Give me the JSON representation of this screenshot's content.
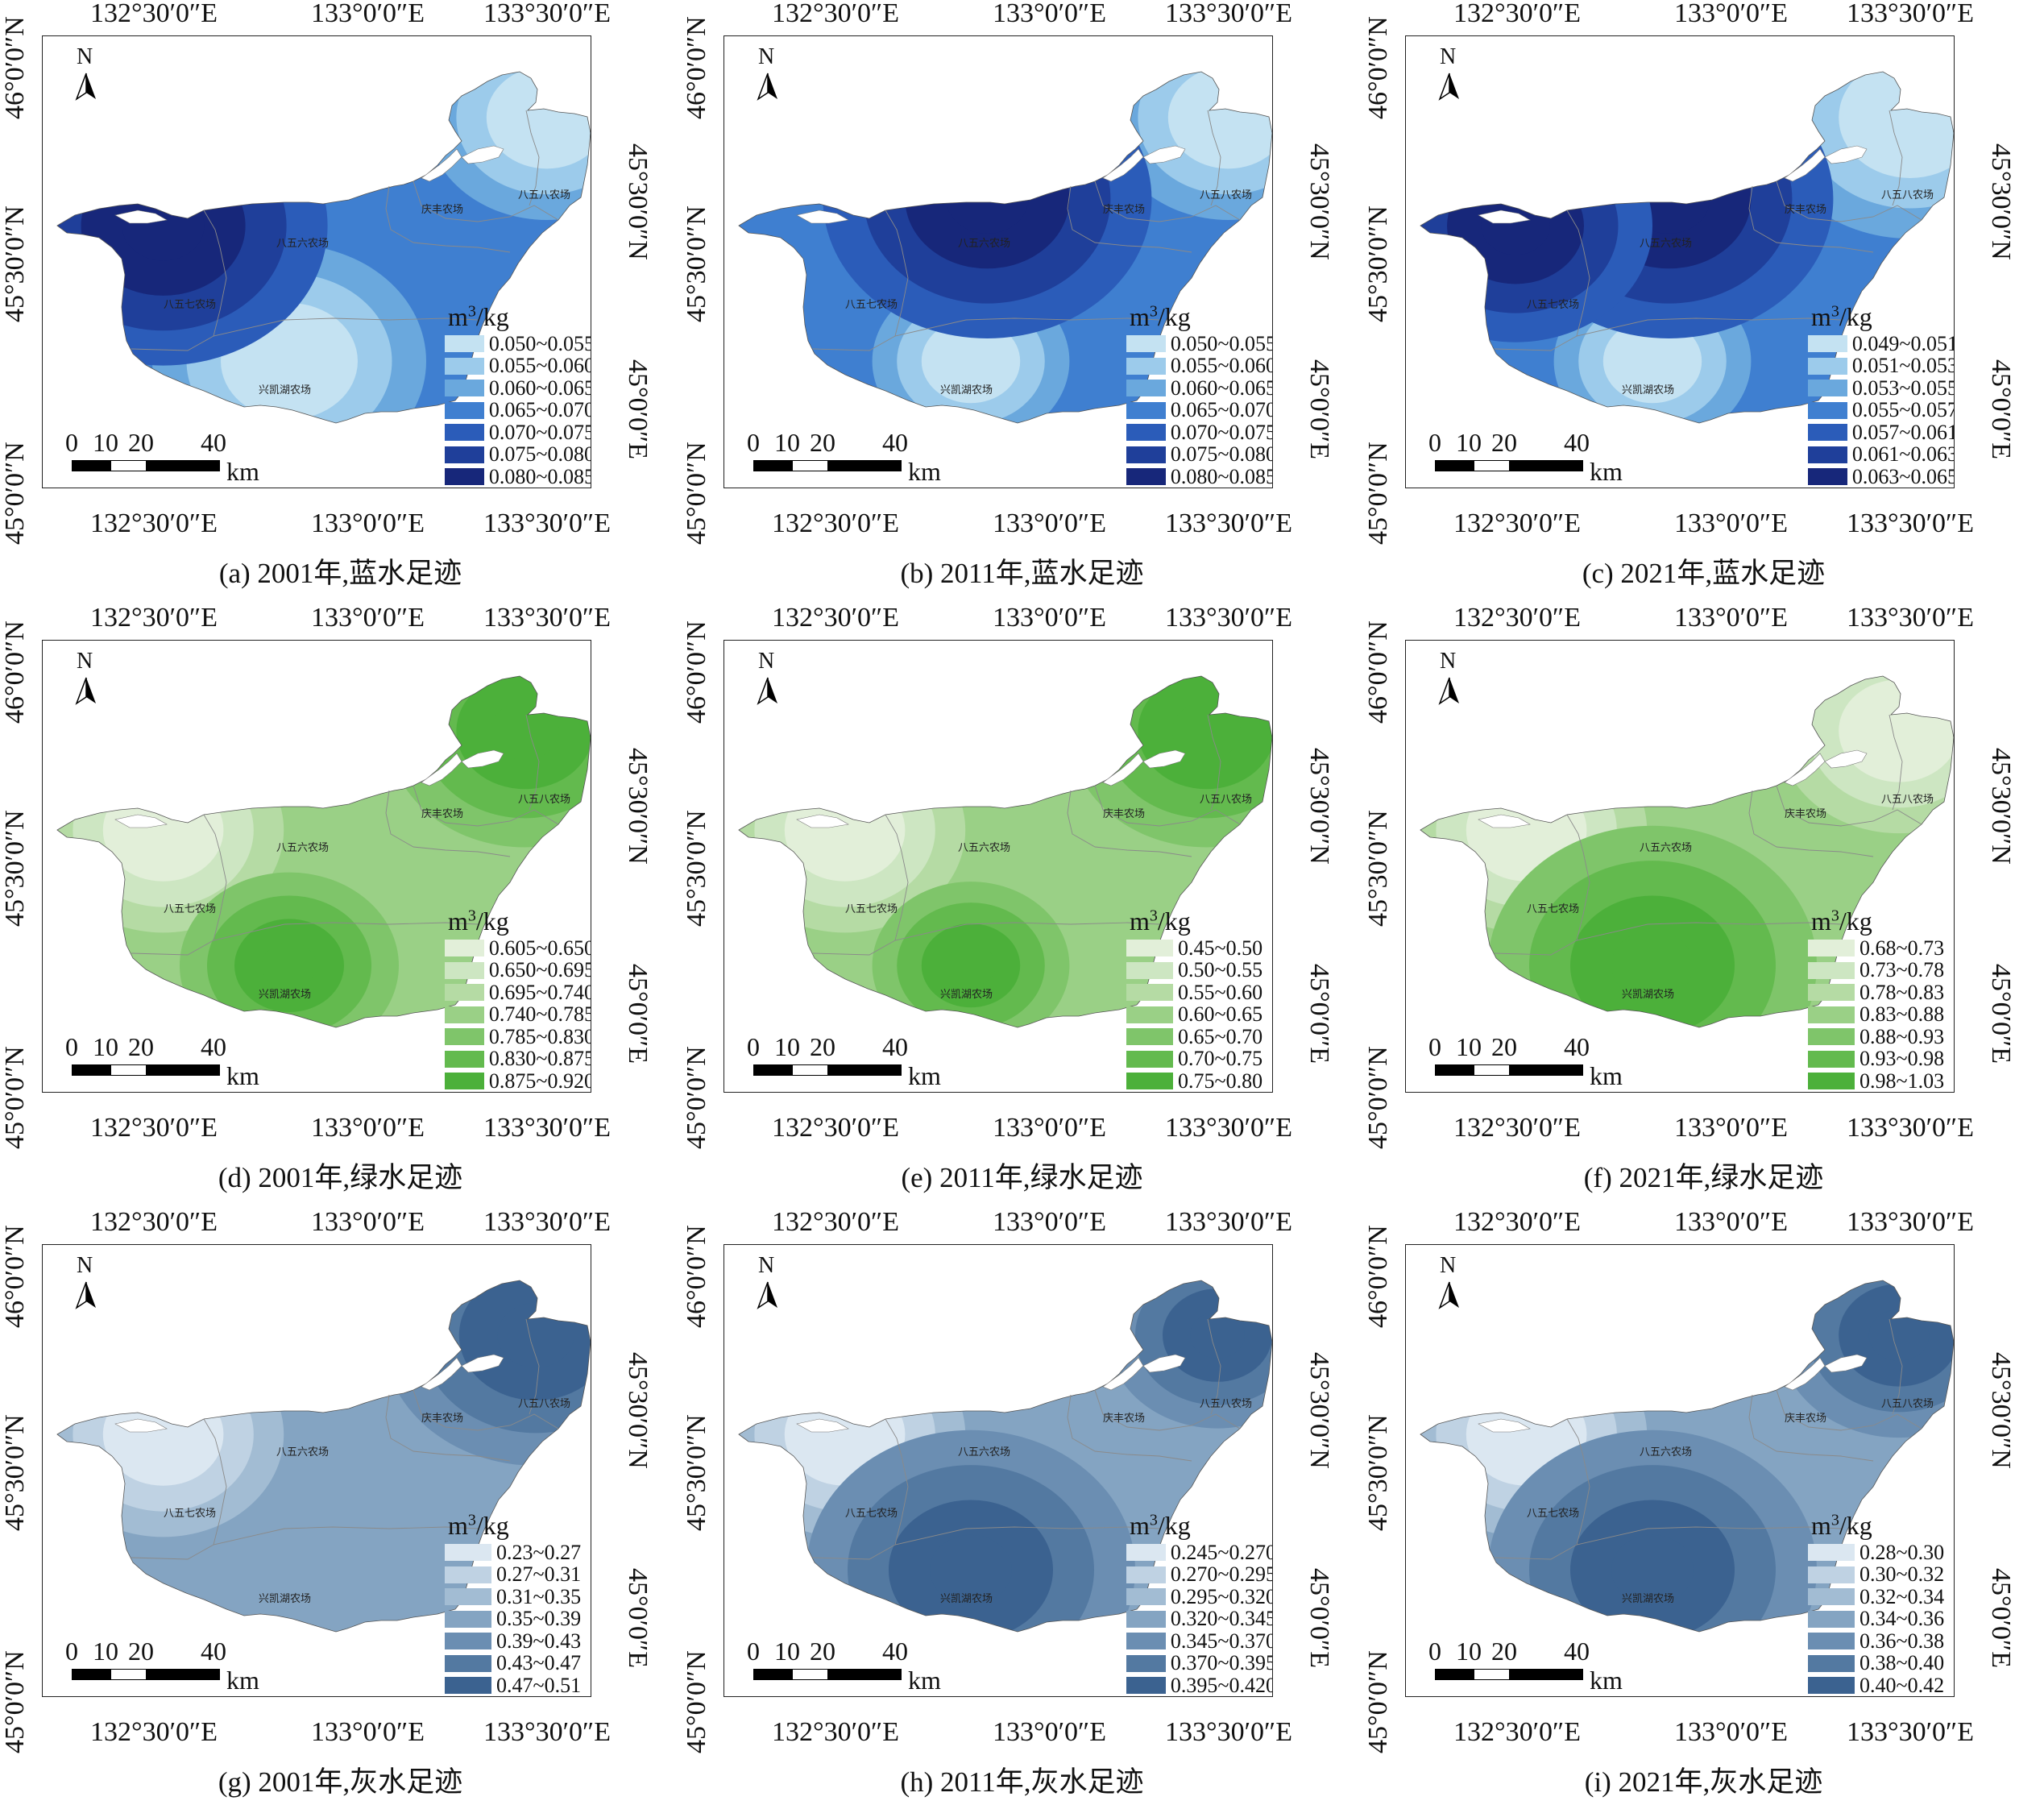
{
  "labels": {
    "lon_left": "132°30′0″E",
    "lon_mid": "133°0′0″E",
    "lon_right": "133°30′0″E",
    "lat_top": "46°0′0″N",
    "lat_mid": "45°30′0″N",
    "lat_bottom": "45°0′0″N",
    "lon_right_vertical": "45°0′0″E",
    "north": "N",
    "scale_ticks": [
      "0",
      "10",
      "20",
      "40"
    ],
    "scale_unit": "km",
    "legend_unit_base": "m",
    "legend_unit_sup": "3",
    "legend_unit_tail": "/kg"
  },
  "farms": {
    "f858": "八五八农场",
    "f856": "八五六农场",
    "f857": "八五七农场",
    "qingfeng": "庆丰农场",
    "xingkaihu": "兴凯湖农场"
  },
  "panels": [
    {
      "id": "a",
      "caption": "(a) 2001年,蓝水足迹",
      "theme": "blue",
      "colors": [
        "#c4e2f2",
        "#9ccbeb",
        "#6aa8dd",
        "#3f7fd0",
        "#2b5cb9",
        "#1f3f9a",
        "#17277a"
      ],
      "ranges": [
        "0.050~0.055",
        "0.055~0.060",
        "0.060~0.065",
        "0.065~0.070",
        "0.070~0.075",
        "0.075~0.080",
        "0.080~0.085"
      ],
      "hot": [
        [
          0.22,
          0.42,
          0.3
        ]
      ],
      "cold": [
        [
          0.92,
          0.18,
          0.22
        ],
        [
          0.45,
          0.72,
          0.25
        ]
      ]
    },
    {
      "id": "b",
      "caption": "(b) 2011年,蓝水足迹",
      "theme": "blue",
      "colors": [
        "#c4e2f2",
        "#9ccbeb",
        "#6aa8dd",
        "#3f7fd0",
        "#2b5cb9",
        "#1f3f9a",
        "#17277a"
      ],
      "ranges": [
        "0.050~0.055",
        "0.055~0.060",
        "0.060~0.065",
        "0.065~0.070",
        "0.070~0.075",
        "0.075~0.080",
        "0.080~0.085"
      ],
      "hot": [
        [
          0.48,
          0.36,
          0.3
        ]
      ],
      "cold": [
        [
          0.92,
          0.18,
          0.22
        ],
        [
          0.45,
          0.72,
          0.18
        ]
      ]
    },
    {
      "id": "c",
      "caption": "(c) 2021年,蓝水足迹",
      "theme": "blue",
      "colors": [
        "#c4e2f2",
        "#9ccbeb",
        "#6aa8dd",
        "#3f7fd0",
        "#2b5cb9",
        "#1f3f9a",
        "#17277a"
      ],
      "ranges": [
        "0.049~0.051",
        "0.051~0.053",
        "0.053~0.055",
        "0.055~0.057",
        "0.057~0.061",
        "0.061~0.063",
        "0.063~0.065"
      ],
      "hot": [
        [
          0.48,
          0.36,
          0.3
        ],
        [
          0.2,
          0.42,
          0.25
        ]
      ],
      "cold": [
        [
          0.92,
          0.18,
          0.26
        ],
        [
          0.45,
          0.72,
          0.18
        ]
      ]
    },
    {
      "id": "d",
      "caption": "(d) 2001年,绿水足迹",
      "theme": "green",
      "colors": [
        "#e2efd9",
        "#cde6c2",
        "#b5dba4",
        "#9ad086",
        "#7fc56a",
        "#63ba4e",
        "#4cb03a"
      ],
      "ranges": [
        "0.605~0.650",
        "0.650~0.695",
        "0.695~0.740",
        "0.740~0.785",
        "0.785~0.830",
        "0.830~0.875",
        "0.875~0.920"
      ],
      "hot": [
        [
          0.88,
          0.2,
          0.25
        ],
        [
          0.45,
          0.72,
          0.2
        ]
      ],
      "cold": [
        [
          0.22,
          0.42,
          0.22
        ]
      ]
    },
    {
      "id": "e",
      "caption": "(e) 2011年,绿水足迹",
      "theme": "green",
      "colors": [
        "#e2efd9",
        "#cde6c2",
        "#b5dba4",
        "#9ad086",
        "#7fc56a",
        "#63ba4e",
        "#4cb03a"
      ],
      "ranges": [
        "0.45~0.50",
        "0.50~0.55",
        "0.55~0.60",
        "0.60~0.65",
        "0.65~0.70",
        "0.70~0.75",
        "0.75~0.80"
      ],
      "hot": [
        [
          0.88,
          0.2,
          0.25
        ],
        [
          0.45,
          0.72,
          0.18
        ]
      ],
      "cold": [
        [
          0.22,
          0.42,
          0.22
        ]
      ]
    },
    {
      "id": "f",
      "caption": "(f) 2021年,绿水足迹",
      "theme": "green",
      "colors": [
        "#e2efd9",
        "#cde6c2",
        "#b5dba4",
        "#9ad086",
        "#7fc56a",
        "#63ba4e",
        "#4cb03a"
      ],
      "ranges": [
        "0.68~0.73",
        "0.73~0.78",
        "0.78~0.83",
        "0.83~0.88",
        "0.88~0.93",
        "0.93~0.98",
        "0.98~1.03"
      ],
      "hot": [
        [
          0.45,
          0.72,
          0.3
        ]
      ],
      "cold": [
        [
          0.22,
          0.42,
          0.22
        ],
        [
          0.9,
          0.2,
          0.22
        ]
      ]
    },
    {
      "id": "g",
      "caption": "(g) 2001年,灰水足迹",
      "theme": "gray",
      "colors": [
        "#dbe7f1",
        "#bfd2e3",
        "#a2bcd3",
        "#84a4c2",
        "#6b8eb2",
        "#5379a1",
        "#3b6290"
      ],
      "ranges": [
        "0.23~0.27",
        "0.27~0.31",
        "0.31~0.35",
        "0.35~0.39",
        "0.39~0.43",
        "0.43~0.47",
        "0.47~0.51"
      ],
      "hot": [
        [
          0.9,
          0.2,
          0.28
        ]
      ],
      "cold": [
        [
          0.22,
          0.42,
          0.22
        ]
      ]
    },
    {
      "id": "h",
      "caption": "(h) 2011年,灰水足迹",
      "theme": "gray",
      "colors": [
        "#dbe7f1",
        "#bfd2e3",
        "#a2bcd3",
        "#84a4c2",
        "#6b8eb2",
        "#5379a1",
        "#3b6290"
      ],
      "ranges": [
        "0.245~0.270",
        "0.270~0.295",
        "0.295~0.320",
        "0.320~0.345",
        "0.345~0.370",
        "0.370~0.395",
        "0.395~0.420"
      ],
      "hot": [
        [
          0.45,
          0.72,
          0.3
        ],
        [
          0.9,
          0.2,
          0.2
        ]
      ],
      "cold": [
        [
          0.22,
          0.42,
          0.22
        ]
      ]
    },
    {
      "id": "i",
      "caption": "(i) 2021年,灰水足迹",
      "theme": "gray",
      "colors": [
        "#dbe7f1",
        "#bfd2e3",
        "#a2bcd3",
        "#84a4c2",
        "#6b8eb2",
        "#5379a1",
        "#3b6290"
      ],
      "ranges": [
        "0.28~0.30",
        "0.30~0.32",
        "0.32~0.34",
        "0.34~0.36",
        "0.36~0.38",
        "0.38~0.40",
        "0.40~0.42"
      ],
      "hot": [
        [
          0.45,
          0.72,
          0.3
        ],
        [
          0.9,
          0.2,
          0.22
        ]
      ],
      "cold": [
        [
          0.22,
          0.42,
          0.22
        ]
      ]
    }
  ]
}
